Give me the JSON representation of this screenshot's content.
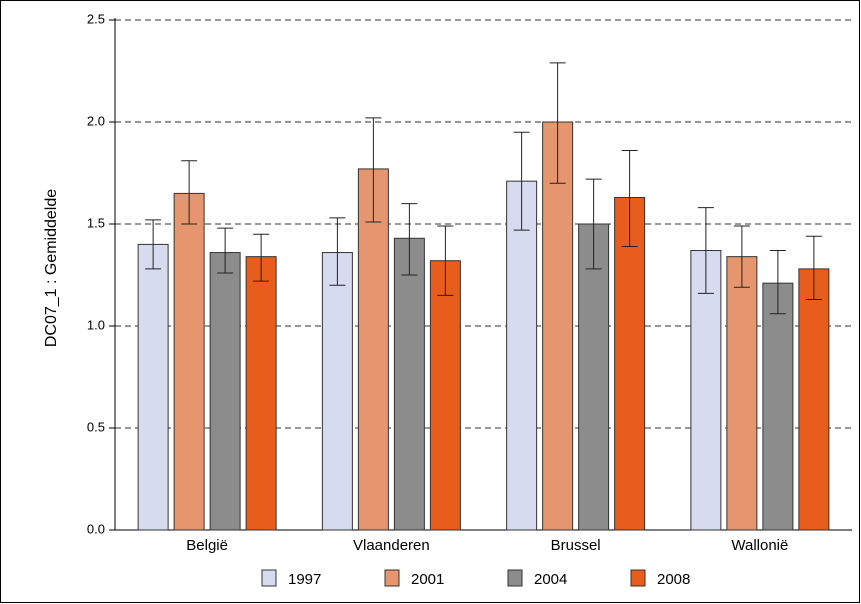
{
  "chart_data": {
    "type": "bar",
    "title": "",
    "xlabel": "",
    "ylabel": "DC07_1 : Gemiddelde",
    "ylim": [
      0,
      2.5
    ],
    "yticks": [
      "0.0",
      "0.5",
      "1.0",
      "1.5",
      "2.0",
      "2.5"
    ],
    "grid": true,
    "legend_position": "bottom",
    "categories": [
      "België",
      "Vlaanderen",
      "Brussel",
      "Wallonië"
    ],
    "series": [
      {
        "name": "1997",
        "color": "#d6dbef",
        "values": [
          1.4,
          1.36,
          1.71,
          1.37
        ],
        "error_low": [
          1.28,
          1.2,
          1.47,
          1.16
        ],
        "error_high": [
          1.52,
          1.53,
          1.95,
          1.58
        ]
      },
      {
        "name": "2001",
        "color": "#e6966e",
        "values": [
          1.65,
          1.77,
          2.0,
          1.34
        ],
        "error_low": [
          1.5,
          1.51,
          1.7,
          1.19
        ],
        "error_high": [
          1.81,
          2.02,
          2.29,
          1.49
        ]
      },
      {
        "name": "2004",
        "color": "#8c8c8c",
        "values": [
          1.36,
          1.43,
          1.5,
          1.21
        ],
        "error_low": [
          1.26,
          1.25,
          1.28,
          1.06
        ],
        "error_high": [
          1.48,
          1.6,
          1.72,
          1.37
        ]
      },
      {
        "name": "2008",
        "color": "#e85c1c",
        "values": [
          1.34,
          1.32,
          1.63,
          1.28
        ],
        "error_low": [
          1.22,
          1.15,
          1.39,
          1.13
        ],
        "error_high": [
          1.45,
          1.49,
          1.86,
          1.44
        ]
      }
    ]
  }
}
